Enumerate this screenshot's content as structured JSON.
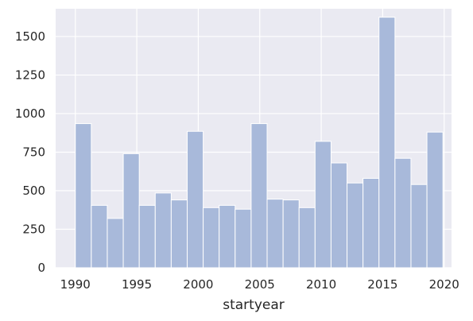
{
  "chart_data": {
    "type": "bar",
    "xlabel": "startyear",
    "ylabel": "",
    "xlim": [
      1988.4,
      2020.6
    ],
    "ylim": [
      0,
      1680
    ],
    "x_ticks": [
      1990,
      1995,
      2000,
      2005,
      2010,
      2015,
      2020
    ],
    "y_ticks": [
      0,
      250,
      500,
      750,
      1000,
      1250,
      1500
    ],
    "grid": true,
    "bins": [
      {
        "start": 1990.0,
        "end": 1991.3,
        "count": 935
      },
      {
        "start": 1991.3,
        "end": 1992.6,
        "count": 405
      },
      {
        "start": 1992.6,
        "end": 1993.9,
        "count": 320
      },
      {
        "start": 1993.9,
        "end": 1995.2,
        "count": 740
      },
      {
        "start": 1995.2,
        "end": 1996.5,
        "count": 405
      },
      {
        "start": 1996.5,
        "end": 1997.8,
        "count": 485
      },
      {
        "start": 1997.8,
        "end": 1999.1,
        "count": 440
      },
      {
        "start": 1999.1,
        "end": 2000.4,
        "count": 885
      },
      {
        "start": 2000.4,
        "end": 2001.7,
        "count": 390
      },
      {
        "start": 2001.7,
        "end": 2003.0,
        "count": 405
      },
      {
        "start": 2003.0,
        "end": 2004.3,
        "count": 380
      },
      {
        "start": 2004.3,
        "end": 2005.6,
        "count": 935
      },
      {
        "start": 2005.6,
        "end": 2006.9,
        "count": 445
      },
      {
        "start": 2006.9,
        "end": 2008.2,
        "count": 440
      },
      {
        "start": 2008.2,
        "end": 2009.5,
        "count": 390
      },
      {
        "start": 2009.5,
        "end": 2010.8,
        "count": 820
      },
      {
        "start": 2010.8,
        "end": 2012.1,
        "count": 680
      },
      {
        "start": 2012.1,
        "end": 2013.4,
        "count": 550
      },
      {
        "start": 2013.4,
        "end": 2014.7,
        "count": 580
      },
      {
        "start": 2014.7,
        "end": 2016.0,
        "count": 1625
      },
      {
        "start": 2016.0,
        "end": 2017.3,
        "count": 710
      },
      {
        "start": 2017.3,
        "end": 2018.6,
        "count": 540
      },
      {
        "start": 2018.6,
        "end": 2019.9,
        "count": 880
      }
    ]
  },
  "colors": {
    "plot_background": "#eaeaf2",
    "grid": "#ffffff",
    "bar_fill": "#a8b9da",
    "bar_edge": "#ffffff",
    "text": "#262626"
  }
}
